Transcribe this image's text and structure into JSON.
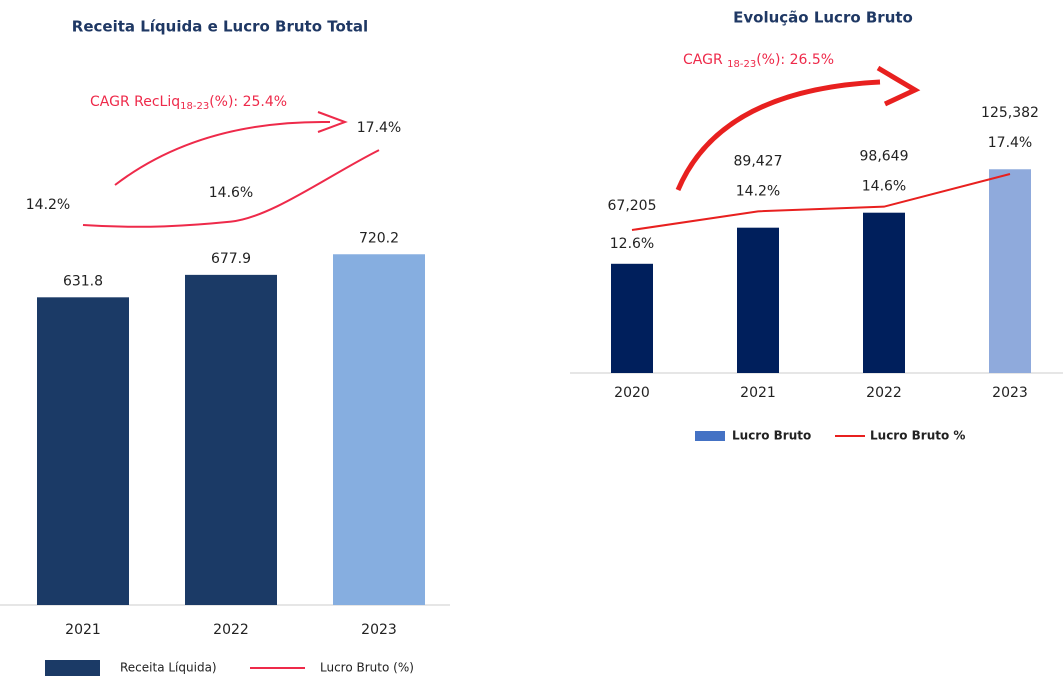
{
  "chart_data": [
    {
      "type": "bar",
      "title": "Receita Líquida e Lucro Bruto Total",
      "annotation": {
        "text": "CAGR RecLiq",
        "subscript": "18-23",
        "suffix": "(%): 25.4%"
      },
      "categories": [
        "2021",
        "2022",
        "2023"
      ],
      "series": [
        {
          "name": "Receita Líquida)",
          "color": "#1b3a66",
          "colors": [
            "#1b3a66",
            "#1b3a66",
            "#86aee0"
          ],
          "values": [
            631.8,
            677.9,
            720.2
          ]
        },
        {
          "name": "Lucro Bruto  (%)",
          "type": "line",
          "color": "#ee2a4a",
          "values": [
            14.2,
            14.6,
            17.4
          ],
          "value_labels": [
            "14.2%",
            "14.6%",
            "17.4%"
          ]
        }
      ]
    },
    {
      "type": "bar",
      "title": "Evolução Lucro Bruto",
      "annotation": {
        "text": "CAGR ",
        "subscript": "18-23",
        "suffix": "(%): 26.5%"
      },
      "categories": [
        "2020",
        "2021",
        "2022",
        "2023"
      ],
      "series": [
        {
          "name": "Lucro Bruto",
          "color": "#4472c4",
          "colors": [
            "#001f5c",
            "#001f5c",
            "#001f5c",
            "#8faadc"
          ],
          "values": [
            67205,
            89427,
            98649,
            125382
          ],
          "value_labels": [
            "67,205",
            "89,427",
            "98,649",
            "125,382"
          ]
        },
        {
          "name": "Lucro Bruto %",
          "type": "line",
          "color": "#e8201f",
          "values": [
            12.6,
            14.2,
            14.6,
            17.4
          ],
          "value_labels": [
            "12.6%",
            "14.2%",
            "14.6%",
            "17.4%"
          ]
        }
      ]
    }
  ]
}
